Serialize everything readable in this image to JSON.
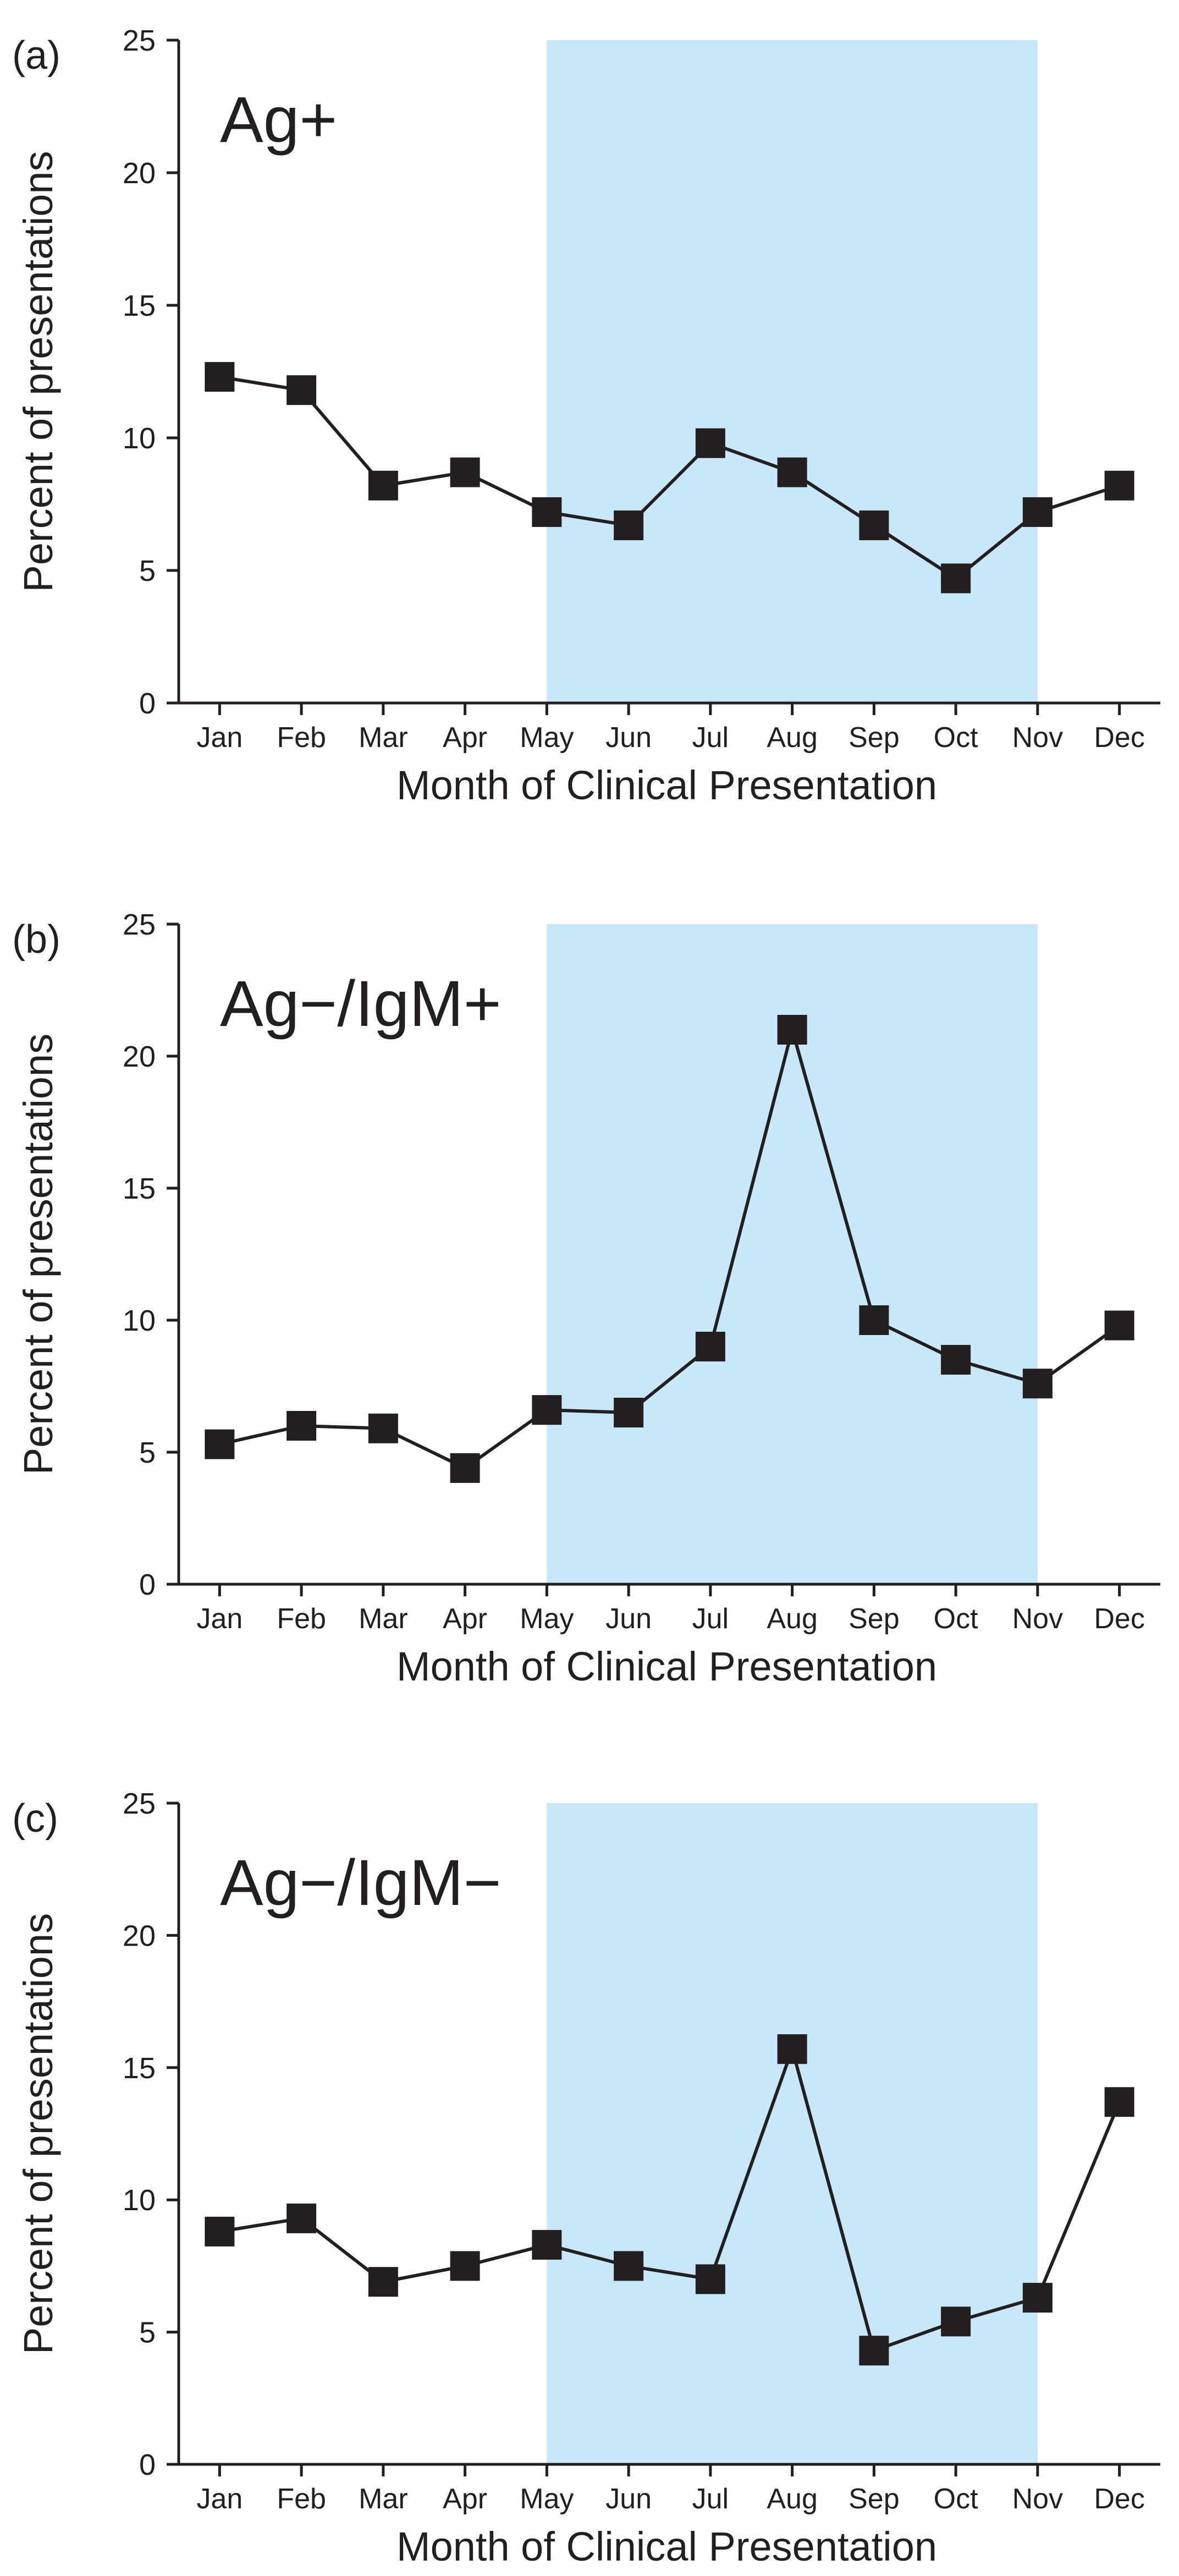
{
  "chart_data": [
    {
      "type": "line",
      "panel_label": "(a)",
      "series_title": "Ag+",
      "xlabel": "Month of Clinical Presentation",
      "ylabel": "Percent of presentations",
      "categories": [
        "Jan",
        "Feb",
        "Mar",
        "Apr",
        "May",
        "Jun",
        "Jul",
        "Aug",
        "Sep",
        "Oct",
        "Nov",
        "Dec"
      ],
      "values": [
        12.3,
        11.8,
        8.2,
        8.7,
        7.2,
        6.7,
        9.8,
        8.7,
        6.7,
        4.7,
        7.2,
        8.2
      ],
      "ylim": [
        0,
        25
      ],
      "yticks": [
        "0",
        "5",
        "10",
        "15",
        "20",
        "25"
      ],
      "shaded_range": [
        "May",
        "Nov"
      ],
      "shade_color": "#c8e8fa",
      "line_color": "#231f20",
      "marker": "square",
      "grid": false
    },
    {
      "type": "line",
      "panel_label": "(b)",
      "series_title": "Ag−/IgM+",
      "xlabel": "Month of Clinical Presentation",
      "ylabel": "Percent of presentations",
      "categories": [
        "Jan",
        "Feb",
        "Mar",
        "Apr",
        "May",
        "Jun",
        "Jul",
        "Aug",
        "Sep",
        "Oct",
        "Nov",
        "Dec"
      ],
      "values": [
        5.3,
        6.0,
        5.9,
        4.4,
        6.6,
        6.5,
        9.0,
        21.0,
        10.0,
        8.5,
        7.6,
        9.8
      ],
      "ylim": [
        0,
        25
      ],
      "yticks": [
        "0",
        "5",
        "10",
        "15",
        "20",
        "25"
      ],
      "shaded_range": [
        "May",
        "Nov"
      ],
      "shade_color": "#c8e8fa",
      "line_color": "#231f20",
      "marker": "square",
      "grid": false
    },
    {
      "type": "line",
      "panel_label": "(c)",
      "series_title": "Ag−/IgM−",
      "xlabel": "Month of Clinical Presentation",
      "ylabel": "Percent of presentations",
      "categories": [
        "Jan",
        "Feb",
        "Mar",
        "Apr",
        "May",
        "Jun",
        "Jul",
        "Aug",
        "Sep",
        "Oct",
        "Nov",
        "Dec"
      ],
      "values": [
        8.8,
        9.3,
        6.9,
        7.5,
        8.3,
        7.5,
        7.0,
        15.7,
        4.3,
        5.4,
        6.3,
        13.7
      ],
      "ylim": [
        0,
        25
      ],
      "yticks": [
        "0",
        "5",
        "10",
        "15",
        "20",
        "25"
      ],
      "shaded_range": [
        "May",
        "Nov"
      ],
      "shade_color": "#c8e8fa",
      "line_color": "#231f20",
      "marker": "square",
      "grid": false
    }
  ]
}
